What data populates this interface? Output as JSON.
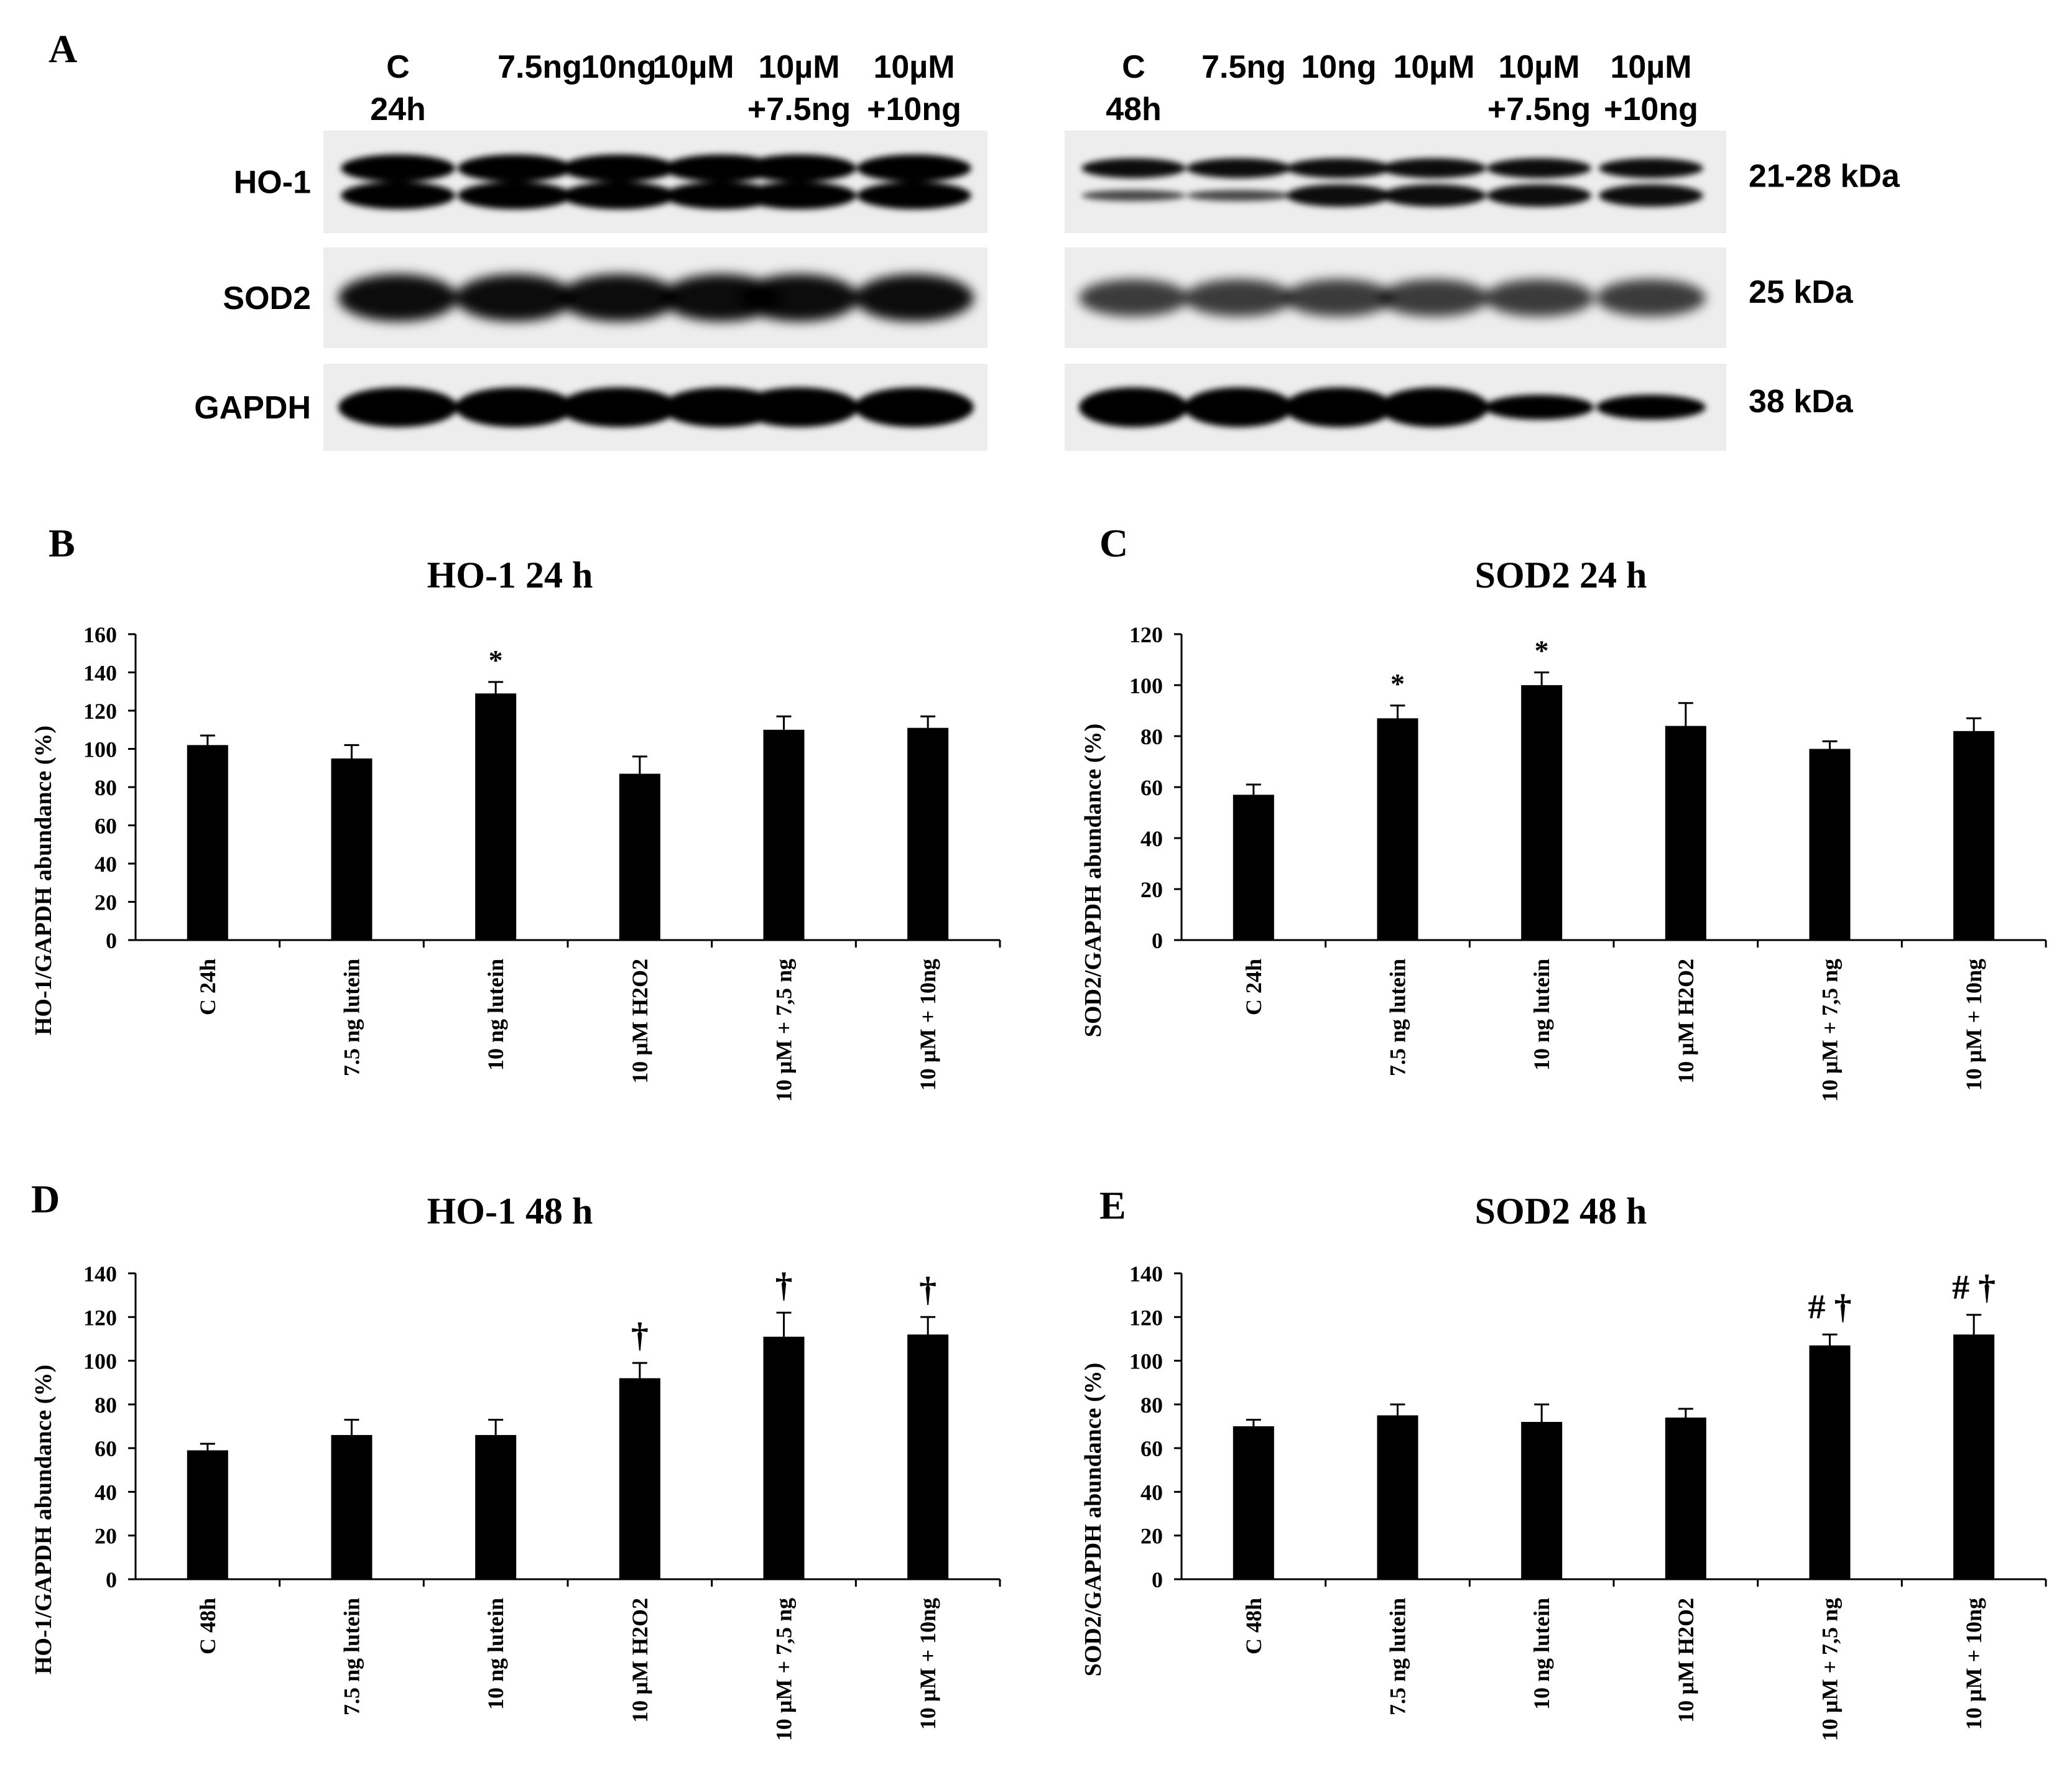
{
  "colors": {
    "bar": "#000000",
    "axis": "#000000",
    "background": "#ffffff",
    "blot_bg": "#ededed"
  },
  "panel_a": {
    "letter": "A",
    "blots": [
      {
        "lanes": [
          [
            "C",
            "24h"
          ],
          [
            "7.5ng"
          ],
          [
            "10ng"
          ],
          [
            "10µM"
          ],
          [
            "10µM",
            "+7.5ng"
          ],
          [
            "10µM",
            "+10ng"
          ]
        ]
      },
      {
        "lanes": [
          [
            "C",
            "48h"
          ],
          [
            "7.5ng"
          ],
          [
            "10ng"
          ],
          [
            "10µM"
          ],
          [
            "10µM",
            "+7.5ng"
          ],
          [
            "10µM",
            "+10ng"
          ]
        ]
      }
    ],
    "rows": [
      {
        "label": "HO-1",
        "kda": "21-28 kDa"
      },
      {
        "label": "SOD2",
        "kda": "25 kDa"
      },
      {
        "label": "GAPDH",
        "kda": "38 kDa"
      }
    ]
  },
  "chart_data": [
    {
      "type": "bar",
      "letter": "B",
      "title": "HO-1 24 h",
      "ylabel": "HO-1/GAPDH abundance (%)",
      "xlabel": "",
      "ylim": [
        0,
        160
      ],
      "yticks": [
        "0",
        "20",
        "40",
        "60",
        "80",
        "100",
        "120",
        "140",
        "160"
      ],
      "categories": [
        "C 24h",
        "7.5 ng lutein",
        "10 ng lutein",
        "10 µM H2O2",
        "10 µM + 7,5 ng",
        "10 µM + 10ng"
      ],
      "values": [
        102,
        95,
        129,
        87,
        110,
        111
      ],
      "errors": [
        5,
        7,
        6,
        9,
        7,
        6
      ],
      "annotations": [
        "",
        "",
        "*",
        "",
        "",
        ""
      ],
      "legend": "none",
      "grid": false
    },
    {
      "type": "bar",
      "letter": "C",
      "title": "SOD2 24 h",
      "ylabel": "SOD2/GAPDH abundance (%)",
      "xlabel": "",
      "ylim": [
        0,
        120
      ],
      "yticks": [
        "0",
        "20",
        "40",
        "60",
        "80",
        "100",
        "120"
      ],
      "categories": [
        "C 24h",
        "7.5 ng lutein",
        "10 ng lutein",
        "10 µM H2O2",
        "10 µM + 7,5 ng",
        "10 µM + 10ng"
      ],
      "values": [
        57,
        87,
        100,
        84,
        75,
        82
      ],
      "errors": [
        4,
        5,
        5,
        9,
        3,
        5
      ],
      "annotations": [
        "",
        "*",
        "*",
        "",
        "",
        ""
      ],
      "legend": "none",
      "grid": false
    },
    {
      "type": "bar",
      "letter": "D",
      "title": "HO-1 48 h",
      "ylabel": "HO-1/GAPDH abundance (%)",
      "xlabel": "",
      "ylim": [
        0,
        140
      ],
      "yticks": [
        "0",
        "20",
        "40",
        "60",
        "80",
        "100",
        "120",
        "140"
      ],
      "categories": [
        "C 48h",
        "7.5 ng lutein",
        "10 ng lutein",
        "10 µM H2O2",
        "10 µM + 7,5 ng",
        "10 µM + 10ng"
      ],
      "values": [
        59,
        66,
        66,
        92,
        111,
        112
      ],
      "errors": [
        3,
        7,
        7,
        7,
        11,
        8
      ],
      "annotations": [
        "",
        "",
        "",
        "†",
        "†",
        "†"
      ],
      "legend": "none",
      "grid": false
    },
    {
      "type": "bar",
      "letter": "E",
      "title": "SOD2 48 h",
      "ylabel": "SOD2/GAPDH abundance (%)",
      "xlabel": "",
      "ylim": [
        0,
        140
      ],
      "yticks": [
        "0",
        "20",
        "40",
        "60",
        "80",
        "100",
        "120",
        "140"
      ],
      "categories": [
        "C 48h",
        "7.5 ng lutein",
        "10 ng lutein",
        "10 µM H2O2",
        "10 µM + 7,5 ng",
        "10 µM + 10ng"
      ],
      "values": [
        70,
        75,
        72,
        74,
        107,
        112
      ],
      "errors": [
        3,
        5,
        8,
        4,
        5,
        9
      ],
      "annotations": [
        "",
        "",
        "",
        "",
        "# †",
        "# †"
      ],
      "legend": "none",
      "grid": false
    }
  ]
}
